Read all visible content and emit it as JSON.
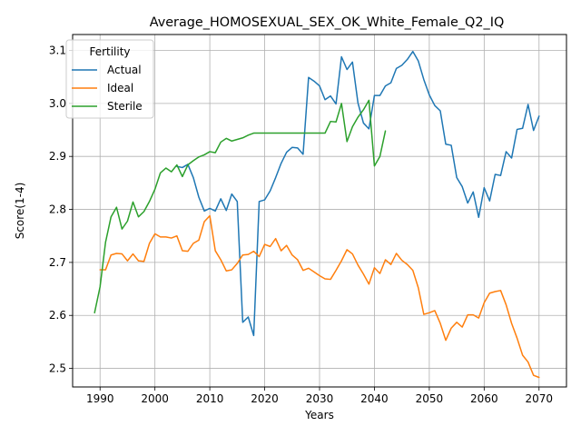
{
  "chart_data": {
    "type": "line",
    "title": "Average_HOMOSEXUAL_SEX_OK_White_Female_Q2_IQ",
    "xlabel": "Years",
    "ylabel": "Score(1-4)",
    "xlim": [
      1985,
      2075
    ],
    "ylim": [
      2.465,
      3.13
    ],
    "xticks": [
      1990,
      2000,
      2010,
      2020,
      2030,
      2040,
      2050,
      2060,
      2070
    ],
    "yticks": [
      2.5,
      2.6,
      2.7,
      2.8,
      2.9,
      3.0,
      3.1
    ],
    "xtick_labels": [
      "1990",
      "2000",
      "2010",
      "2020",
      "2030",
      "2040",
      "2050",
      "2060",
      "2070"
    ],
    "ytick_labels": [
      "2.5",
      "2.6",
      "2.7",
      "2.8",
      "2.9",
      "3.0",
      "3.1"
    ],
    "grid": true,
    "legend": {
      "title": "Fertility",
      "position": "top-left"
    },
    "series": [
      {
        "name": "Actual",
        "color": "#1f77b4",
        "x": [
          2004,
          2005,
          2006,
          2007,
          2008,
          2009,
          2010,
          2011,
          2012,
          2013,
          2014,
          2015,
          2016,
          2017,
          2018,
          2019,
          2020,
          2021,
          2022,
          2023,
          2024,
          2025,
          2026,
          2027,
          2028,
          2029,
          2030,
          2031,
          2032,
          2033,
          2034,
          2035,
          2036,
          2037,
          2038,
          2039,
          2040,
          2041,
          2042,
          2043,
          2044,
          2045,
          2046,
          2047,
          2048,
          2049,
          2050,
          2051,
          2052,
          2053,
          2054,
          2055,
          2056,
          2057,
          2058,
          2059,
          2060,
          2061,
          2062,
          2063,
          2064,
          2065,
          2066,
          2067,
          2068,
          2069,
          2070
        ],
        "y": [
          2.881,
          2.879,
          2.885,
          2.86,
          2.823,
          2.797,
          2.802,
          2.797,
          2.82,
          2.798,
          2.829,
          2.815,
          2.587,
          2.597,
          2.562,
          2.815,
          2.818,
          2.835,
          2.86,
          2.887,
          2.908,
          2.917,
          2.916,
          2.904,
          3.049,
          3.042,
          3.033,
          3.007,
          3.014,
          2.999,
          3.088,
          3.064,
          3.078,
          3.001,
          2.963,
          2.952,
          3.015,
          3.015,
          3.033,
          3.039,
          3.066,
          3.072,
          3.083,
          3.098,
          3.08,
          3.045,
          3.016,
          2.996,
          2.986,
          2.923,
          2.921,
          2.86,
          2.843,
          2.812,
          2.833,
          2.785,
          2.841,
          2.816,
          2.866,
          2.864,
          2.909,
          2.897,
          2.951,
          2.953,
          2.998,
          2.949,
          2.976
        ]
      },
      {
        "name": "Ideal",
        "color": "#ff7f0e",
        "x": [
          1990,
          1991,
          1992,
          1993,
          1994,
          1995,
          1996,
          1997,
          1998,
          1999,
          2000,
          2001,
          2002,
          2003,
          2004,
          2005,
          2006,
          2007,
          2008,
          2009,
          2010,
          2011,
          2012,
          2013,
          2014,
          2015,
          2016,
          2017,
          2018,
          2019,
          2020,
          2021,
          2022,
          2023,
          2024,
          2025,
          2026,
          2027,
          2028,
          2029,
          2030,
          2031,
          2032,
          2033,
          2034,
          2035,
          2036,
          2037,
          2038,
          2039,
          2040,
          2041,
          2042,
          2043,
          2044,
          2045,
          2046,
          2047,
          2048,
          2049,
          2050,
          2051,
          2052,
          2053,
          2054,
          2055,
          2056,
          2057,
          2058,
          2059,
          2060,
          2061,
          2062,
          2063,
          2064,
          2065,
          2066,
          2067,
          2068,
          2069,
          2070
        ],
        "y": [
          2.686,
          2.686,
          2.714,
          2.717,
          2.716,
          2.703,
          2.716,
          2.703,
          2.702,
          2.736,
          2.754,
          2.748,
          2.748,
          2.746,
          2.75,
          2.722,
          2.721,
          2.736,
          2.742,
          2.777,
          2.788,
          2.722,
          2.705,
          2.684,
          2.686,
          2.698,
          2.714,
          2.715,
          2.721,
          2.711,
          2.734,
          2.73,
          2.745,
          2.722,
          2.732,
          2.714,
          2.705,
          2.685,
          2.689,
          2.682,
          2.675,
          2.669,
          2.668,
          2.685,
          2.703,
          2.724,
          2.716,
          2.695,
          2.678,
          2.659,
          2.69,
          2.679,
          2.705,
          2.696,
          2.717,
          2.704,
          2.696,
          2.685,
          2.652,
          2.602,
          2.605,
          2.609,
          2.585,
          2.553,
          2.576,
          2.587,
          2.578,
          2.601,
          2.601,
          2.595,
          2.624,
          2.642,
          2.645,
          2.647,
          2.62,
          2.585,
          2.557,
          2.525,
          2.512,
          2.487,
          2.483
        ]
      },
      {
        "name": "Sterile",
        "color": "#2ca02c",
        "x": [
          1989,
          1990,
          1991,
          1992,
          1993,
          1994,
          1995,
          1996,
          1997,
          1998,
          1999,
          2000,
          2001,
          2002,
          2003,
          2004,
          2005,
          2006,
          2007,
          2008,
          2009,
          2010,
          2011,
          2012,
          2013,
          2014,
          2015,
          2016,
          2017,
          2018,
          2019,
          2020,
          2021,
          2022,
          2023,
          2024,
          2025,
          2026,
          2027,
          2028,
          2029,
          2030,
          2031,
          2032,
          2033,
          2034,
          2035,
          2036,
          2037,
          2038,
          2039,
          2040,
          2041,
          2042
        ],
        "y": [
          2.605,
          2.654,
          2.738,
          2.786,
          2.804,
          2.763,
          2.778,
          2.814,
          2.786,
          2.796,
          2.815,
          2.838,
          2.869,
          2.878,
          2.871,
          2.884,
          2.862,
          2.884,
          2.892,
          2.899,
          2.903,
          2.909,
          2.907,
          2.927,
          2.934,
          2.929,
          2.932,
          2.935,
          2.94,
          2.944,
          2.944,
          2.944,
          2.944,
          2.944,
          2.944,
          2.944,
          2.944,
          2.944,
          2.944,
          2.944,
          2.944,
          2.944,
          2.944,
          2.966,
          2.965,
          3.0,
          2.928,
          2.956,
          2.974,
          2.988,
          3.006,
          2.882,
          2.9,
          2.948
        ]
      }
    ]
  }
}
